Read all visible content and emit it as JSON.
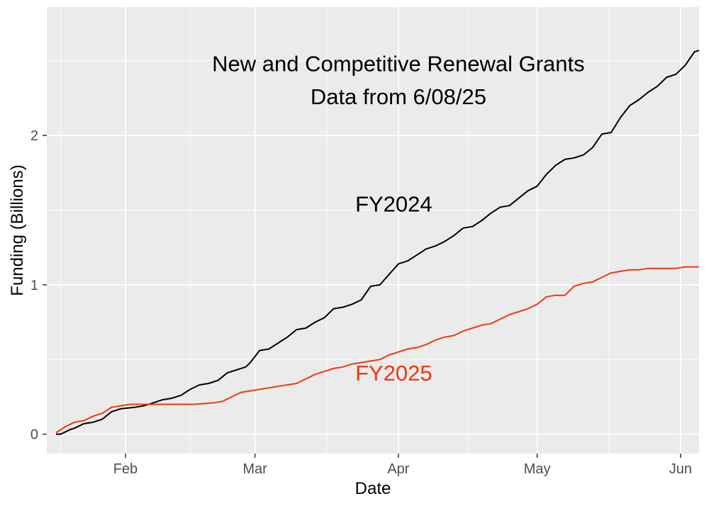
{
  "chart_data": {
    "type": "line",
    "xlabel": "Date",
    "ylabel": "Funding (Billions)",
    "x_ticks": [
      {
        "date": "2025-02-01",
        "label": "Feb"
      },
      {
        "date": "2025-03-01",
        "label": "Mar"
      },
      {
        "date": "2025-04-01",
        "label": "Apr"
      },
      {
        "date": "2025-05-01",
        "label": "May"
      },
      {
        "date": "2025-06-01",
        "label": "Jun"
      }
    ],
    "y_ticks": [
      {
        "value": 0,
        "label": "0"
      },
      {
        "value": 1,
        "label": "1"
      },
      {
        "value": 2,
        "label": "2"
      }
    ],
    "xlim": [
      "2025-01-15",
      "2025-06-05"
    ],
    "ylim": [
      -0.13,
      2.86
    ],
    "grid": true,
    "background": "#ebebeb",
    "annotations": [
      {
        "text": "New and Competitive Renewal Grants",
        "x": "2025-04-01",
        "y": 2.43,
        "color": "#000000"
      },
      {
        "text": "Data from 6/08/25",
        "x": "2025-04-01",
        "y": 2.21,
        "color": "#000000"
      },
      {
        "text": "FY2024",
        "x": "2025-03-31",
        "y": 1.49,
        "color": "#000000"
      },
      {
        "text": "FY2025",
        "x": "2025-03-31",
        "y": 0.36,
        "color": "#f0380f"
      }
    ],
    "series": [
      {
        "name": "FY2024",
        "color": "#000000",
        "points": [
          [
            "2025-01-17",
            0.0
          ],
          [
            "2025-01-18",
            0.0
          ],
          [
            "2025-01-20",
            0.03
          ],
          [
            "2025-01-21",
            0.04
          ],
          [
            "2025-01-23",
            0.07
          ],
          [
            "2025-01-25",
            0.08
          ],
          [
            "2025-01-27",
            0.1
          ],
          [
            "2025-01-29",
            0.15
          ],
          [
            "2025-01-31",
            0.17
          ],
          [
            "2025-02-03",
            0.18
          ],
          [
            "2025-02-05",
            0.19
          ],
          [
            "2025-02-07",
            0.21
          ],
          [
            "2025-02-09",
            0.23
          ],
          [
            "2025-02-11",
            0.24
          ],
          [
            "2025-02-13",
            0.26
          ],
          [
            "2025-02-15",
            0.3
          ],
          [
            "2025-02-17",
            0.33
          ],
          [
            "2025-02-19",
            0.34
          ],
          [
            "2025-02-21",
            0.36
          ],
          [
            "2025-02-23",
            0.41
          ],
          [
            "2025-02-25",
            0.43
          ],
          [
            "2025-02-27",
            0.45
          ],
          [
            "2025-02-28",
            0.48
          ],
          [
            "2025-03-02",
            0.56
          ],
          [
            "2025-03-04",
            0.57
          ],
          [
            "2025-03-06",
            0.61
          ],
          [
            "2025-03-08",
            0.65
          ],
          [
            "2025-03-10",
            0.7
          ],
          [
            "2025-03-12",
            0.71
          ],
          [
            "2025-03-14",
            0.75
          ],
          [
            "2025-03-16",
            0.78
          ],
          [
            "2025-03-18",
            0.84
          ],
          [
            "2025-03-20",
            0.85
          ],
          [
            "2025-03-22",
            0.87
          ],
          [
            "2025-03-24",
            0.9
          ],
          [
            "2025-03-26",
            0.99
          ],
          [
            "2025-03-28",
            1.0
          ],
          [
            "2025-03-30",
            1.07
          ],
          [
            "2025-04-01",
            1.14
          ],
          [
            "2025-04-03",
            1.16
          ],
          [
            "2025-04-05",
            1.2
          ],
          [
            "2025-04-07",
            1.24
          ],
          [
            "2025-04-09",
            1.26
          ],
          [
            "2025-04-11",
            1.29
          ],
          [
            "2025-04-13",
            1.33
          ],
          [
            "2025-04-15",
            1.38
          ],
          [
            "2025-04-17",
            1.39
          ],
          [
            "2025-04-19",
            1.43
          ],
          [
            "2025-04-21",
            1.48
          ],
          [
            "2025-04-23",
            1.52
          ],
          [
            "2025-04-25",
            1.53
          ],
          [
            "2025-04-27",
            1.58
          ],
          [
            "2025-04-29",
            1.63
          ],
          [
            "2025-05-01",
            1.66
          ],
          [
            "2025-05-03",
            1.74
          ],
          [
            "2025-05-05",
            1.8
          ],
          [
            "2025-05-07",
            1.84
          ],
          [
            "2025-05-09",
            1.85
          ],
          [
            "2025-05-11",
            1.87
          ],
          [
            "2025-05-13",
            1.92
          ],
          [
            "2025-05-15",
            2.01
          ],
          [
            "2025-05-17",
            2.02
          ],
          [
            "2025-05-19",
            2.12
          ],
          [
            "2025-05-21",
            2.2
          ],
          [
            "2025-05-23",
            2.24
          ],
          [
            "2025-05-25",
            2.29
          ],
          [
            "2025-05-27",
            2.33
          ],
          [
            "2025-05-29",
            2.39
          ],
          [
            "2025-05-31",
            2.41
          ],
          [
            "2025-06-02",
            2.47
          ],
          [
            "2025-06-04",
            2.56
          ],
          [
            "2025-06-05",
            2.57
          ]
        ]
      },
      {
        "name": "FY2025",
        "color": "#f0380f",
        "points": [
          [
            "2025-01-17",
            0.01
          ],
          [
            "2025-01-19",
            0.05
          ],
          [
            "2025-01-21",
            0.08
          ],
          [
            "2025-01-23",
            0.09
          ],
          [
            "2025-01-25",
            0.12
          ],
          [
            "2025-01-27",
            0.14
          ],
          [
            "2025-01-29",
            0.18
          ],
          [
            "2025-01-31",
            0.19
          ],
          [
            "2025-02-02",
            0.2
          ],
          [
            "2025-02-08",
            0.2
          ],
          [
            "2025-02-16",
            0.2
          ],
          [
            "2025-02-20",
            0.21
          ],
          [
            "2025-02-22",
            0.22
          ],
          [
            "2025-02-24",
            0.25
          ],
          [
            "2025-02-26",
            0.28
          ],
          [
            "2025-02-28",
            0.29
          ],
          [
            "2025-03-02",
            0.3
          ],
          [
            "2025-03-04",
            0.31
          ],
          [
            "2025-03-06",
            0.32
          ],
          [
            "2025-03-08",
            0.33
          ],
          [
            "2025-03-10",
            0.34
          ],
          [
            "2025-03-12",
            0.37
          ],
          [
            "2025-03-14",
            0.4
          ],
          [
            "2025-03-16",
            0.42
          ],
          [
            "2025-03-18",
            0.44
          ],
          [
            "2025-03-20",
            0.45
          ],
          [
            "2025-03-22",
            0.47
          ],
          [
            "2025-03-24",
            0.48
          ],
          [
            "2025-03-26",
            0.49
          ],
          [
            "2025-03-28",
            0.5
          ],
          [
            "2025-03-30",
            0.53
          ],
          [
            "2025-04-01",
            0.55
          ],
          [
            "2025-04-03",
            0.57
          ],
          [
            "2025-04-05",
            0.58
          ],
          [
            "2025-04-07",
            0.6
          ],
          [
            "2025-04-09",
            0.63
          ],
          [
            "2025-04-11",
            0.65
          ],
          [
            "2025-04-13",
            0.66
          ],
          [
            "2025-04-15",
            0.69
          ],
          [
            "2025-04-17",
            0.71
          ],
          [
            "2025-04-19",
            0.73
          ],
          [
            "2025-04-21",
            0.74
          ],
          [
            "2025-04-23",
            0.77
          ],
          [
            "2025-04-25",
            0.8
          ],
          [
            "2025-04-27",
            0.82
          ],
          [
            "2025-04-29",
            0.84
          ],
          [
            "2025-05-01",
            0.87
          ],
          [
            "2025-05-03",
            0.92
          ],
          [
            "2025-05-05",
            0.93
          ],
          [
            "2025-05-07",
            0.93
          ],
          [
            "2025-05-09",
            0.99
          ],
          [
            "2025-05-11",
            1.01
          ],
          [
            "2025-05-13",
            1.02
          ],
          [
            "2025-05-15",
            1.05
          ],
          [
            "2025-05-17",
            1.08
          ],
          [
            "2025-05-19",
            1.09
          ],
          [
            "2025-05-21",
            1.1
          ],
          [
            "2025-05-23",
            1.1
          ],
          [
            "2025-05-25",
            1.11
          ],
          [
            "2025-05-31",
            1.11
          ],
          [
            "2025-06-02",
            1.12
          ],
          [
            "2025-06-05",
            1.12
          ]
        ]
      }
    ]
  }
}
